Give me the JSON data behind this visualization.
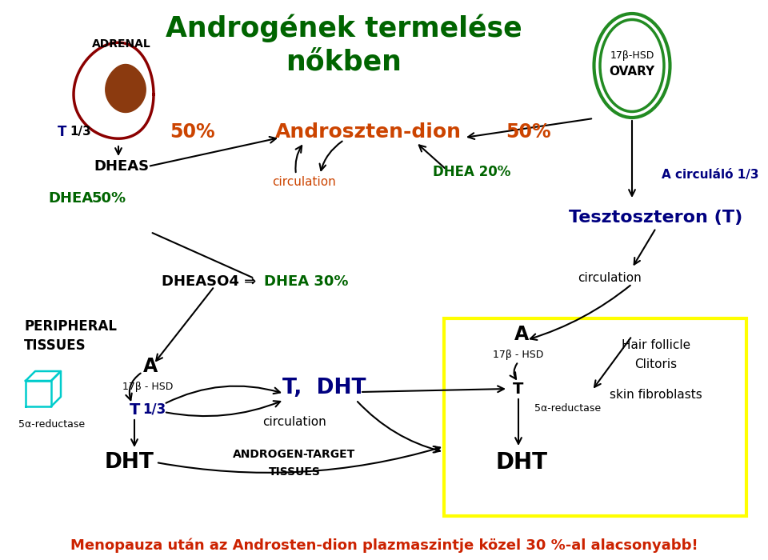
{
  "title_line1": "Androgének termelése",
  "title_line2": "nőkben",
  "title_color": "#006400",
  "bg_color": "#ffffff",
  "bottom_text": "Menopauza után az Androsten-dion plazmaszintje közel 30 %-al alacsonyabb!",
  "bottom_text_color": "#cc2200",
  "orange_color": "#cc4400",
  "green_color": "#006400",
  "blue_color": "#000080",
  "black": "#000000",
  "dark_red": "#8B0000",
  "brown": "#8B3A0F",
  "dark_green": "#228B22",
  "cyan": "#00CCCC"
}
